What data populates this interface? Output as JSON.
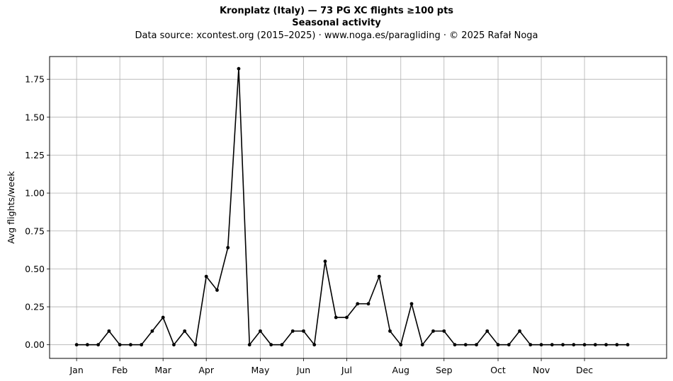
{
  "chart_data": {
    "type": "line",
    "title": "Kronplatz (Italy)  —  73 PG XC flights ≥100 pts",
    "subtitle": "Seasonal activity",
    "source_line": "Data source: xcontest.org (2015–2025)  ·  www.noga.es/paragliding  ·  © 2025 Rafał Noga",
    "xlabel": "",
    "ylabel": "Avg flights/week",
    "ylim": [
      -0.09,
      1.9
    ],
    "yticks": [
      0.0,
      0.25,
      0.5,
      0.75,
      1.0,
      1.25,
      1.5,
      1.75
    ],
    "ytick_labels": [
      "0.00",
      "0.25",
      "0.50",
      "0.75",
      "1.00",
      "1.25",
      "1.50",
      "1.75"
    ],
    "xlim": [
      -2.5,
      54.6
    ],
    "xticks": [
      0,
      4,
      8,
      12,
      17,
      21,
      25,
      30,
      34,
      39,
      43,
      47
    ],
    "xtick_labels": [
      "Jan",
      "Feb",
      "Mar",
      "Apr",
      "May",
      "Jun",
      "Jul",
      "Aug",
      "Sep",
      "Oct",
      "Nov",
      "Dec"
    ],
    "grid": true,
    "color": "#000000",
    "x": [
      0,
      1,
      2,
      3,
      4,
      5,
      6,
      7,
      8,
      9,
      10,
      11,
      12,
      13,
      14,
      15,
      16,
      17,
      18,
      19,
      20,
      21,
      22,
      23,
      24,
      25,
      26,
      27,
      28,
      29,
      30,
      31,
      32,
      33,
      34,
      35,
      36,
      37,
      38,
      39,
      40,
      41,
      42,
      43,
      44,
      45,
      46,
      47,
      48,
      49,
      50,
      51
    ],
    "values": [
      0,
      0,
      0,
      0.09,
      0,
      0,
      0,
      0.09,
      0.18,
      0,
      0.09,
      0,
      0.45,
      0.36,
      0.64,
      1.82,
      0,
      0.09,
      0,
      0,
      0.09,
      0.09,
      0,
      0.55,
      0.18,
      0.18,
      0.27,
      0.27,
      0.45,
      0.09,
      0,
      0.27,
      0,
      0.09,
      0.09,
      0,
      0,
      0,
      0.09,
      0,
      0,
      0.09,
      0,
      0,
      0,
      0,
      0,
      0,
      0,
      0,
      0,
      0
    ]
  }
}
